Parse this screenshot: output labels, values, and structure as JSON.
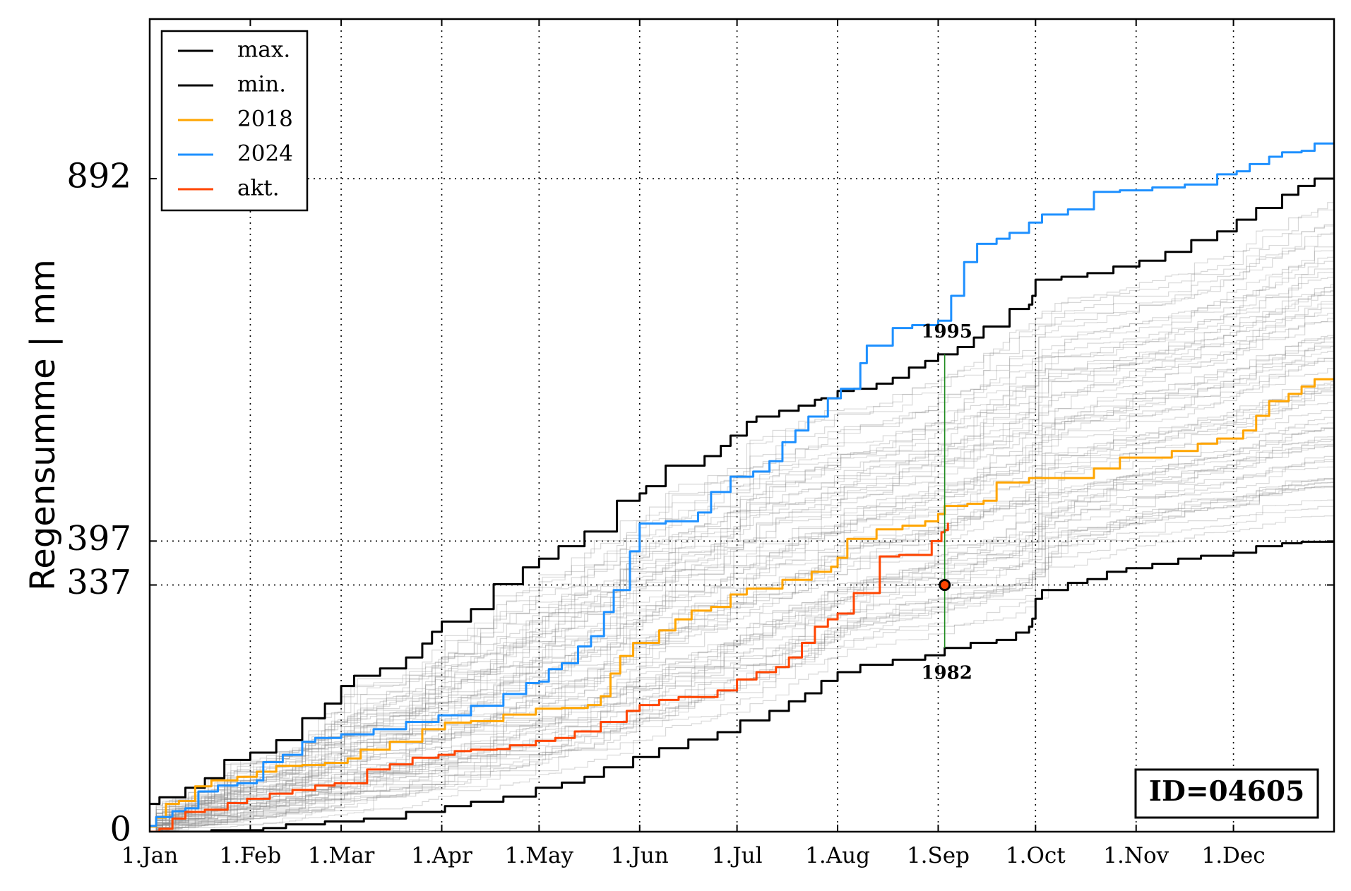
{
  "chart_data": {
    "type": "line",
    "title": "",
    "xlabel": "",
    "ylabel": "Regensumme | mm",
    "x_domain": [
      1,
      366
    ],
    "ylim": [
      0,
      1110
    ],
    "grid": true,
    "legend_placement": "top-left",
    "station_id_label": "ID=04605",
    "x_ticks": [
      {
        "day": 1,
        "label": "1.Jan"
      },
      {
        "day": 32,
        "label": "1.Feb"
      },
      {
        "day": 60,
        "label": "1.Mar"
      },
      {
        "day": 91,
        "label": "1.Apr"
      },
      {
        "day": 121,
        "label": "1.May"
      },
      {
        "day": 152,
        "label": "1.Jun"
      },
      {
        "day": 182,
        "label": "1.Jul"
      },
      {
        "day": 213,
        "label": "1.Aug"
      },
      {
        "day": 244,
        "label": "1.Sep"
      },
      {
        "day": 274,
        "label": "1.Oct"
      },
      {
        "day": 305,
        "label": "1.Nov"
      },
      {
        "day": 335,
        "label": "1.Dec"
      }
    ],
    "y_ticks": [
      {
        "value": 0,
        "label": "0"
      },
      {
        "value": 337,
        "label": "337"
      },
      {
        "value": 397,
        "label": "397"
      },
      {
        "value": 892,
        "label": "892"
      }
    ],
    "series": [
      {
        "name": "max.",
        "color": "#000000",
        "points": [
          [
            1,
            38
          ],
          [
            4,
            47
          ],
          [
            12,
            60
          ],
          [
            18,
            73
          ],
          [
            24,
            98
          ],
          [
            32,
            108
          ],
          [
            40,
            125
          ],
          [
            48,
            155
          ],
          [
            55,
            175
          ],
          [
            60,
            199
          ],
          [
            64,
            213
          ],
          [
            72,
            223
          ],
          [
            80,
            238
          ],
          [
            85,
            257
          ],
          [
            88,
            273
          ],
          [
            91,
            287
          ],
          [
            100,
            304
          ],
          [
            107,
            338
          ],
          [
            116,
            361
          ],
          [
            121,
            373
          ],
          [
            127,
            390
          ],
          [
            135,
            410
          ],
          [
            145,
            452
          ],
          [
            152,
            462
          ],
          [
            154,
            472
          ],
          [
            160,
            500
          ],
          [
            172,
            513
          ],
          [
            177,
            527
          ],
          [
            180,
            541
          ],
          [
            185,
            560
          ],
          [
            188,
            567
          ],
          [
            195,
            575
          ],
          [
            201,
            582
          ],
          [
            206,
            590
          ],
          [
            208,
            592
          ],
          [
            210,
            592
          ],
          [
            213,
            602
          ],
          [
            218,
            605
          ],
          [
            225,
            612
          ],
          [
            230,
            620
          ],
          [
            235,
            634
          ],
          [
            240,
            643
          ],
          [
            244,
            652
          ],
          [
            250,
            662
          ],
          [
            255,
            675
          ],
          [
            258,
            690
          ],
          [
            266,
            714
          ],
          [
            272,
            720
          ],
          [
            273,
            732
          ],
          [
            274,
            754
          ],
          [
            282,
            758
          ],
          [
            290,
            763
          ],
          [
            298,
            772
          ],
          [
            306,
            780
          ],
          [
            314,
            792
          ],
          [
            322,
            808
          ],
          [
            330,
            820
          ],
          [
            336,
            836
          ],
          [
            342,
            852
          ],
          [
            350,
            870
          ],
          [
            355,
            882
          ],
          [
            360,
            892
          ],
          [
            366,
            892
          ]
        ]
      },
      {
        "name": "min.",
        "color": "#000000",
        "points": [
          [
            1,
            0
          ],
          [
            20,
            2
          ],
          [
            28,
            2
          ],
          [
            36,
            5
          ],
          [
            43,
            10
          ],
          [
            55,
            14
          ],
          [
            67,
            18
          ],
          [
            80,
            27
          ],
          [
            92,
            35
          ],
          [
            100,
            41
          ],
          [
            110,
            48
          ],
          [
            120,
            60
          ],
          [
            128,
            67
          ],
          [
            135,
            75
          ],
          [
            141,
            88
          ],
          [
            150,
            102
          ],
          [
            158,
            114
          ],
          [
            167,
            126
          ],
          [
            176,
            136
          ],
          [
            183,
            152
          ],
          [
            192,
            165
          ],
          [
            198,
            178
          ],
          [
            203,
            189
          ],
          [
            208,
            206
          ],
          [
            213,
            218
          ],
          [
            220,
            228
          ],
          [
            230,
            235
          ],
          [
            240,
            241
          ],
          [
            246,
            251
          ],
          [
            254,
            258
          ],
          [
            262,
            262
          ],
          [
            268,
            272
          ],
          [
            272,
            280
          ],
          [
            273,
            291
          ],
          [
            274,
            318
          ],
          [
            276,
            330
          ],
          [
            284,
            340
          ],
          [
            290,
            345
          ],
          [
            296,
            355
          ],
          [
            302,
            360
          ],
          [
            310,
            366
          ],
          [
            318,
            373
          ],
          [
            325,
            377
          ],
          [
            335,
            381
          ],
          [
            342,
            390
          ],
          [
            350,
            394
          ],
          [
            356,
            396
          ],
          [
            366,
            397
          ]
        ]
      },
      {
        "name": "2018",
        "color": "#ffa500",
        "points": [
          [
            1,
            7
          ],
          [
            3,
            19
          ],
          [
            6,
            38
          ],
          [
            10,
            42
          ],
          [
            15,
            62
          ],
          [
            20,
            70
          ],
          [
            28,
            75
          ],
          [
            34,
            82
          ],
          [
            40,
            90
          ],
          [
            48,
            91
          ],
          [
            55,
            94
          ],
          [
            62,
            100
          ],
          [
            66,
            112
          ],
          [
            75,
            123
          ],
          [
            85,
            140
          ],
          [
            92,
            149
          ],
          [
            100,
            151
          ],
          [
            110,
            160
          ],
          [
            120,
            168
          ],
          [
            128,
            169
          ],
          [
            136,
            173
          ],
          [
            140,
            185
          ],
          [
            143,
            216
          ],
          [
            146,
            240
          ],
          [
            150,
            258
          ],
          [
            158,
            275
          ],
          [
            163,
            290
          ],
          [
            168,
            302
          ],
          [
            174,
            307
          ],
          [
            180,
            324
          ],
          [
            185,
            332
          ],
          [
            196,
            344
          ],
          [
            205,
            355
          ],
          [
            211,
            362
          ],
          [
            213,
            374
          ],
          [
            216,
            400
          ],
          [
            225,
            413
          ],
          [
            233,
            418
          ],
          [
            240,
            424
          ],
          [
            244,
            434
          ],
          [
            246,
            445
          ],
          [
            253,
            448
          ],
          [
            258,
            452
          ],
          [
            262,
            477
          ],
          [
            272,
            483
          ],
          [
            278,
            483
          ],
          [
            286,
            483
          ],
          [
            292,
            496
          ],
          [
            300,
            511
          ],
          [
            308,
            511
          ],
          [
            316,
            520
          ],
          [
            324,
            530
          ],
          [
            330,
            537
          ],
          [
            338,
            548
          ],
          [
            342,
            568
          ],
          [
            346,
            588
          ],
          [
            352,
            598
          ],
          [
            356,
            608
          ],
          [
            360,
            618
          ],
          [
            366,
            620
          ]
        ]
      },
      {
        "name": "2024",
        "color": "#1e90ff",
        "points": [
          [
            1,
            8
          ],
          [
            3,
            20
          ],
          [
            8,
            28
          ],
          [
            12,
            32
          ],
          [
            16,
            55
          ],
          [
            22,
            63
          ],
          [
            28,
            66
          ],
          [
            34,
            70
          ],
          [
            36,
            95
          ],
          [
            42,
            105
          ],
          [
            48,
            123
          ],
          [
            52,
            128
          ],
          [
            60,
            133
          ],
          [
            70,
            140
          ],
          [
            80,
            150
          ],
          [
            90,
            159
          ],
          [
            100,
            172
          ],
          [
            110,
            188
          ],
          [
            117,
            203
          ],
          [
            121,
            205
          ],
          [
            124,
            222
          ],
          [
            128,
            230
          ],
          [
            133,
            253
          ],
          [
            137,
            267
          ],
          [
            141,
            300
          ],
          [
            144,
            330
          ],
          [
            149,
            383
          ],
          [
            152,
            421
          ],
          [
            160,
            424
          ],
          [
            170,
            436
          ],
          [
            174,
            464
          ],
          [
            180,
            485
          ],
          [
            187,
            492
          ],
          [
            192,
            506
          ],
          [
            196,
            532
          ],
          [
            200,
            548
          ],
          [
            204,
            567
          ],
          [
            210,
            592
          ],
          [
            214,
            605
          ],
          [
            220,
            640
          ],
          [
            222,
            664
          ],
          [
            230,
            688
          ],
          [
            236,
            692
          ],
          [
            244,
            698
          ],
          [
            248,
            732
          ],
          [
            252,
            778
          ],
          [
            256,
            803
          ],
          [
            262,
            810
          ],
          [
            266,
            818
          ],
          [
            272,
            832
          ],
          [
            276,
            843
          ],
          [
            284,
            850
          ],
          [
            292,
            874
          ],
          [
            300,
            876
          ],
          [
            310,
            880
          ],
          [
            320,
            884
          ],
          [
            330,
            898
          ],
          [
            336,
            902
          ],
          [
            340,
            912
          ],
          [
            346,
            922
          ],
          [
            350,
            928
          ],
          [
            356,
            930
          ],
          [
            360,
            940
          ],
          [
            366,
            940
          ]
        ]
      },
      {
        "name": "akt.",
        "color": "#ff4500",
        "points": [
          [
            1,
            0
          ],
          [
            4,
            4
          ],
          [
            8,
            18
          ],
          [
            12,
            27
          ],
          [
            18,
            30
          ],
          [
            25,
            39
          ],
          [
            31,
            45
          ],
          [
            38,
            52
          ],
          [
            45,
            57
          ],
          [
            52,
            63
          ],
          [
            58,
            66
          ],
          [
            68,
            85
          ],
          [
            75,
            92
          ],
          [
            82,
            101
          ],
          [
            90,
            105
          ],
          [
            95,
            110
          ],
          [
            100,
            112
          ],
          [
            108,
            113
          ],
          [
            112,
            118
          ],
          [
            120,
            124
          ],
          [
            126,
            128
          ],
          [
            132,
            137
          ],
          [
            140,
            150
          ],
          [
            148,
            165
          ],
          [
            152,
            173
          ],
          [
            158,
            180
          ],
          [
            164,
            184
          ],
          [
            170,
            184
          ],
          [
            176,
            193
          ],
          [
            182,
            208
          ],
          [
            188,
            218
          ],
          [
            194,
            225
          ],
          [
            198,
            238
          ],
          [
            202,
            258
          ],
          [
            206,
            280
          ],
          [
            210,
            290
          ],
          [
            213,
            298
          ],
          [
            218,
            326
          ],
          [
            226,
            376
          ],
          [
            232,
            378
          ],
          [
            240,
            378
          ],
          [
            242,
            397
          ],
          [
            245,
            409
          ],
          [
            246,
            412
          ],
          [
            247,
            422
          ]
        ]
      }
    ],
    "annotations": {
      "vertical_line_day": 246,
      "top_label": "1995",
      "bottom_label": "1982",
      "marker_day": 246,
      "marker_value": 337
    }
  }
}
